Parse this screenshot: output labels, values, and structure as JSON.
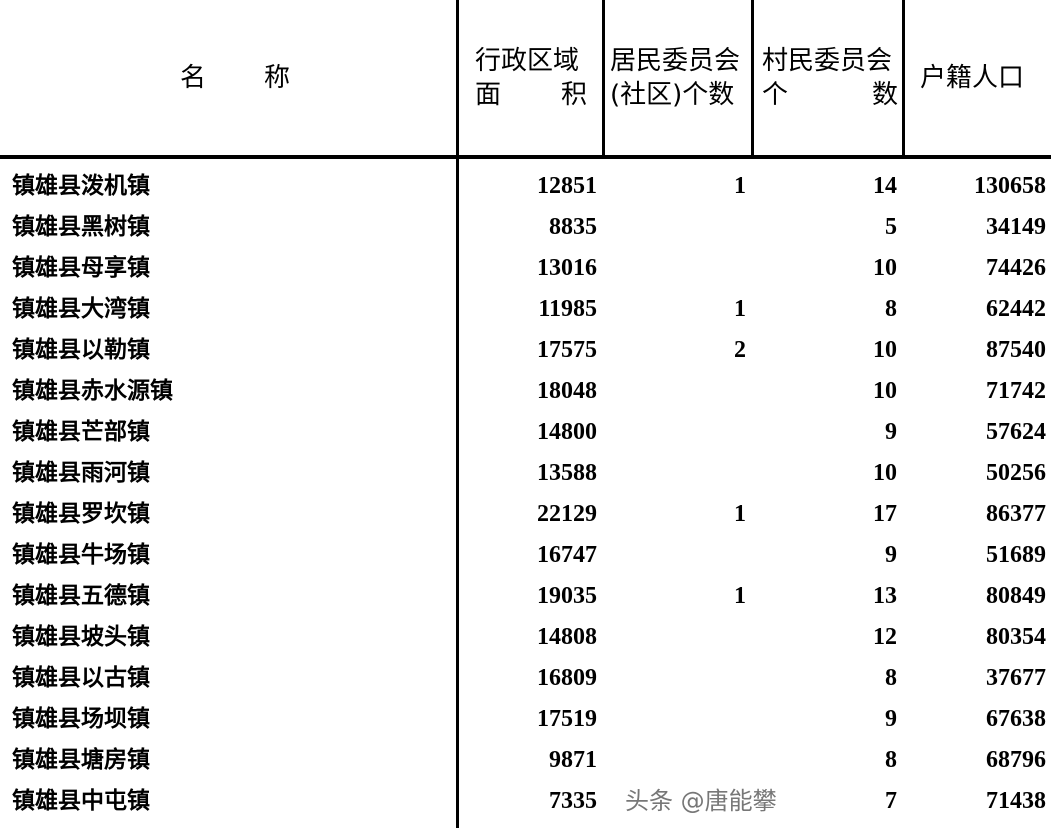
{
  "headers": {
    "name": [
      "名",
      "称"
    ],
    "area": [
      "行政区域",
      "面",
      "积"
    ],
    "residents": [
      "居民委员会",
      "(社区)个数"
    ],
    "villages": [
      "村民委员会",
      "个",
      "数"
    ],
    "population": "户籍人口"
  },
  "rows": [
    {
      "name": "镇雄县泼机镇",
      "area": "12851",
      "residents": "1",
      "villages": "14",
      "population": "130658"
    },
    {
      "name": "镇雄县黑树镇",
      "area": "8835",
      "residents": "",
      "villages": "5",
      "population": "34149"
    },
    {
      "name": "镇雄县母享镇",
      "area": "13016",
      "residents": "",
      "villages": "10",
      "population": "74426"
    },
    {
      "name": "镇雄县大湾镇",
      "area": "11985",
      "residents": "1",
      "villages": "8",
      "population": "62442"
    },
    {
      "name": "镇雄县以勒镇",
      "area": "17575",
      "residents": "2",
      "villages": "10",
      "population": "87540"
    },
    {
      "name": "镇雄县赤水源镇",
      "area": "18048",
      "residents": "",
      "villages": "10",
      "population": "71742"
    },
    {
      "name": "镇雄县芒部镇",
      "area": "14800",
      "residents": "",
      "villages": "9",
      "population": "57624"
    },
    {
      "name": "镇雄县雨河镇",
      "area": "13588",
      "residents": "",
      "villages": "10",
      "population": "50256"
    },
    {
      "name": "镇雄县罗坎镇",
      "area": "22129",
      "residents": "1",
      "villages": "17",
      "population": "86377"
    },
    {
      "name": "镇雄县牛场镇",
      "area": "16747",
      "residents": "",
      "villages": "9",
      "population": "51689"
    },
    {
      "name": "镇雄县五德镇",
      "area": "19035",
      "residents": "1",
      "villages": "13",
      "population": "80849"
    },
    {
      "name": "镇雄县坡头镇",
      "area": "14808",
      "residents": "",
      "villages": "12",
      "population": "80354"
    },
    {
      "name": "镇雄县以古镇",
      "area": "16809",
      "residents": "",
      "villages": "8",
      "population": "37677"
    },
    {
      "name": "镇雄县场坝镇",
      "area": "17519",
      "residents": "",
      "villages": "9",
      "population": "67638"
    },
    {
      "name": "镇雄县塘房镇",
      "area": "9871",
      "residents": "",
      "villages": "8",
      "population": "68796"
    },
    {
      "name": "镇雄县中屯镇",
      "area": "7335",
      "residents": "",
      "villages": "7",
      "population": "71438"
    }
  ],
  "watermark": "头条 @唐能攀"
}
